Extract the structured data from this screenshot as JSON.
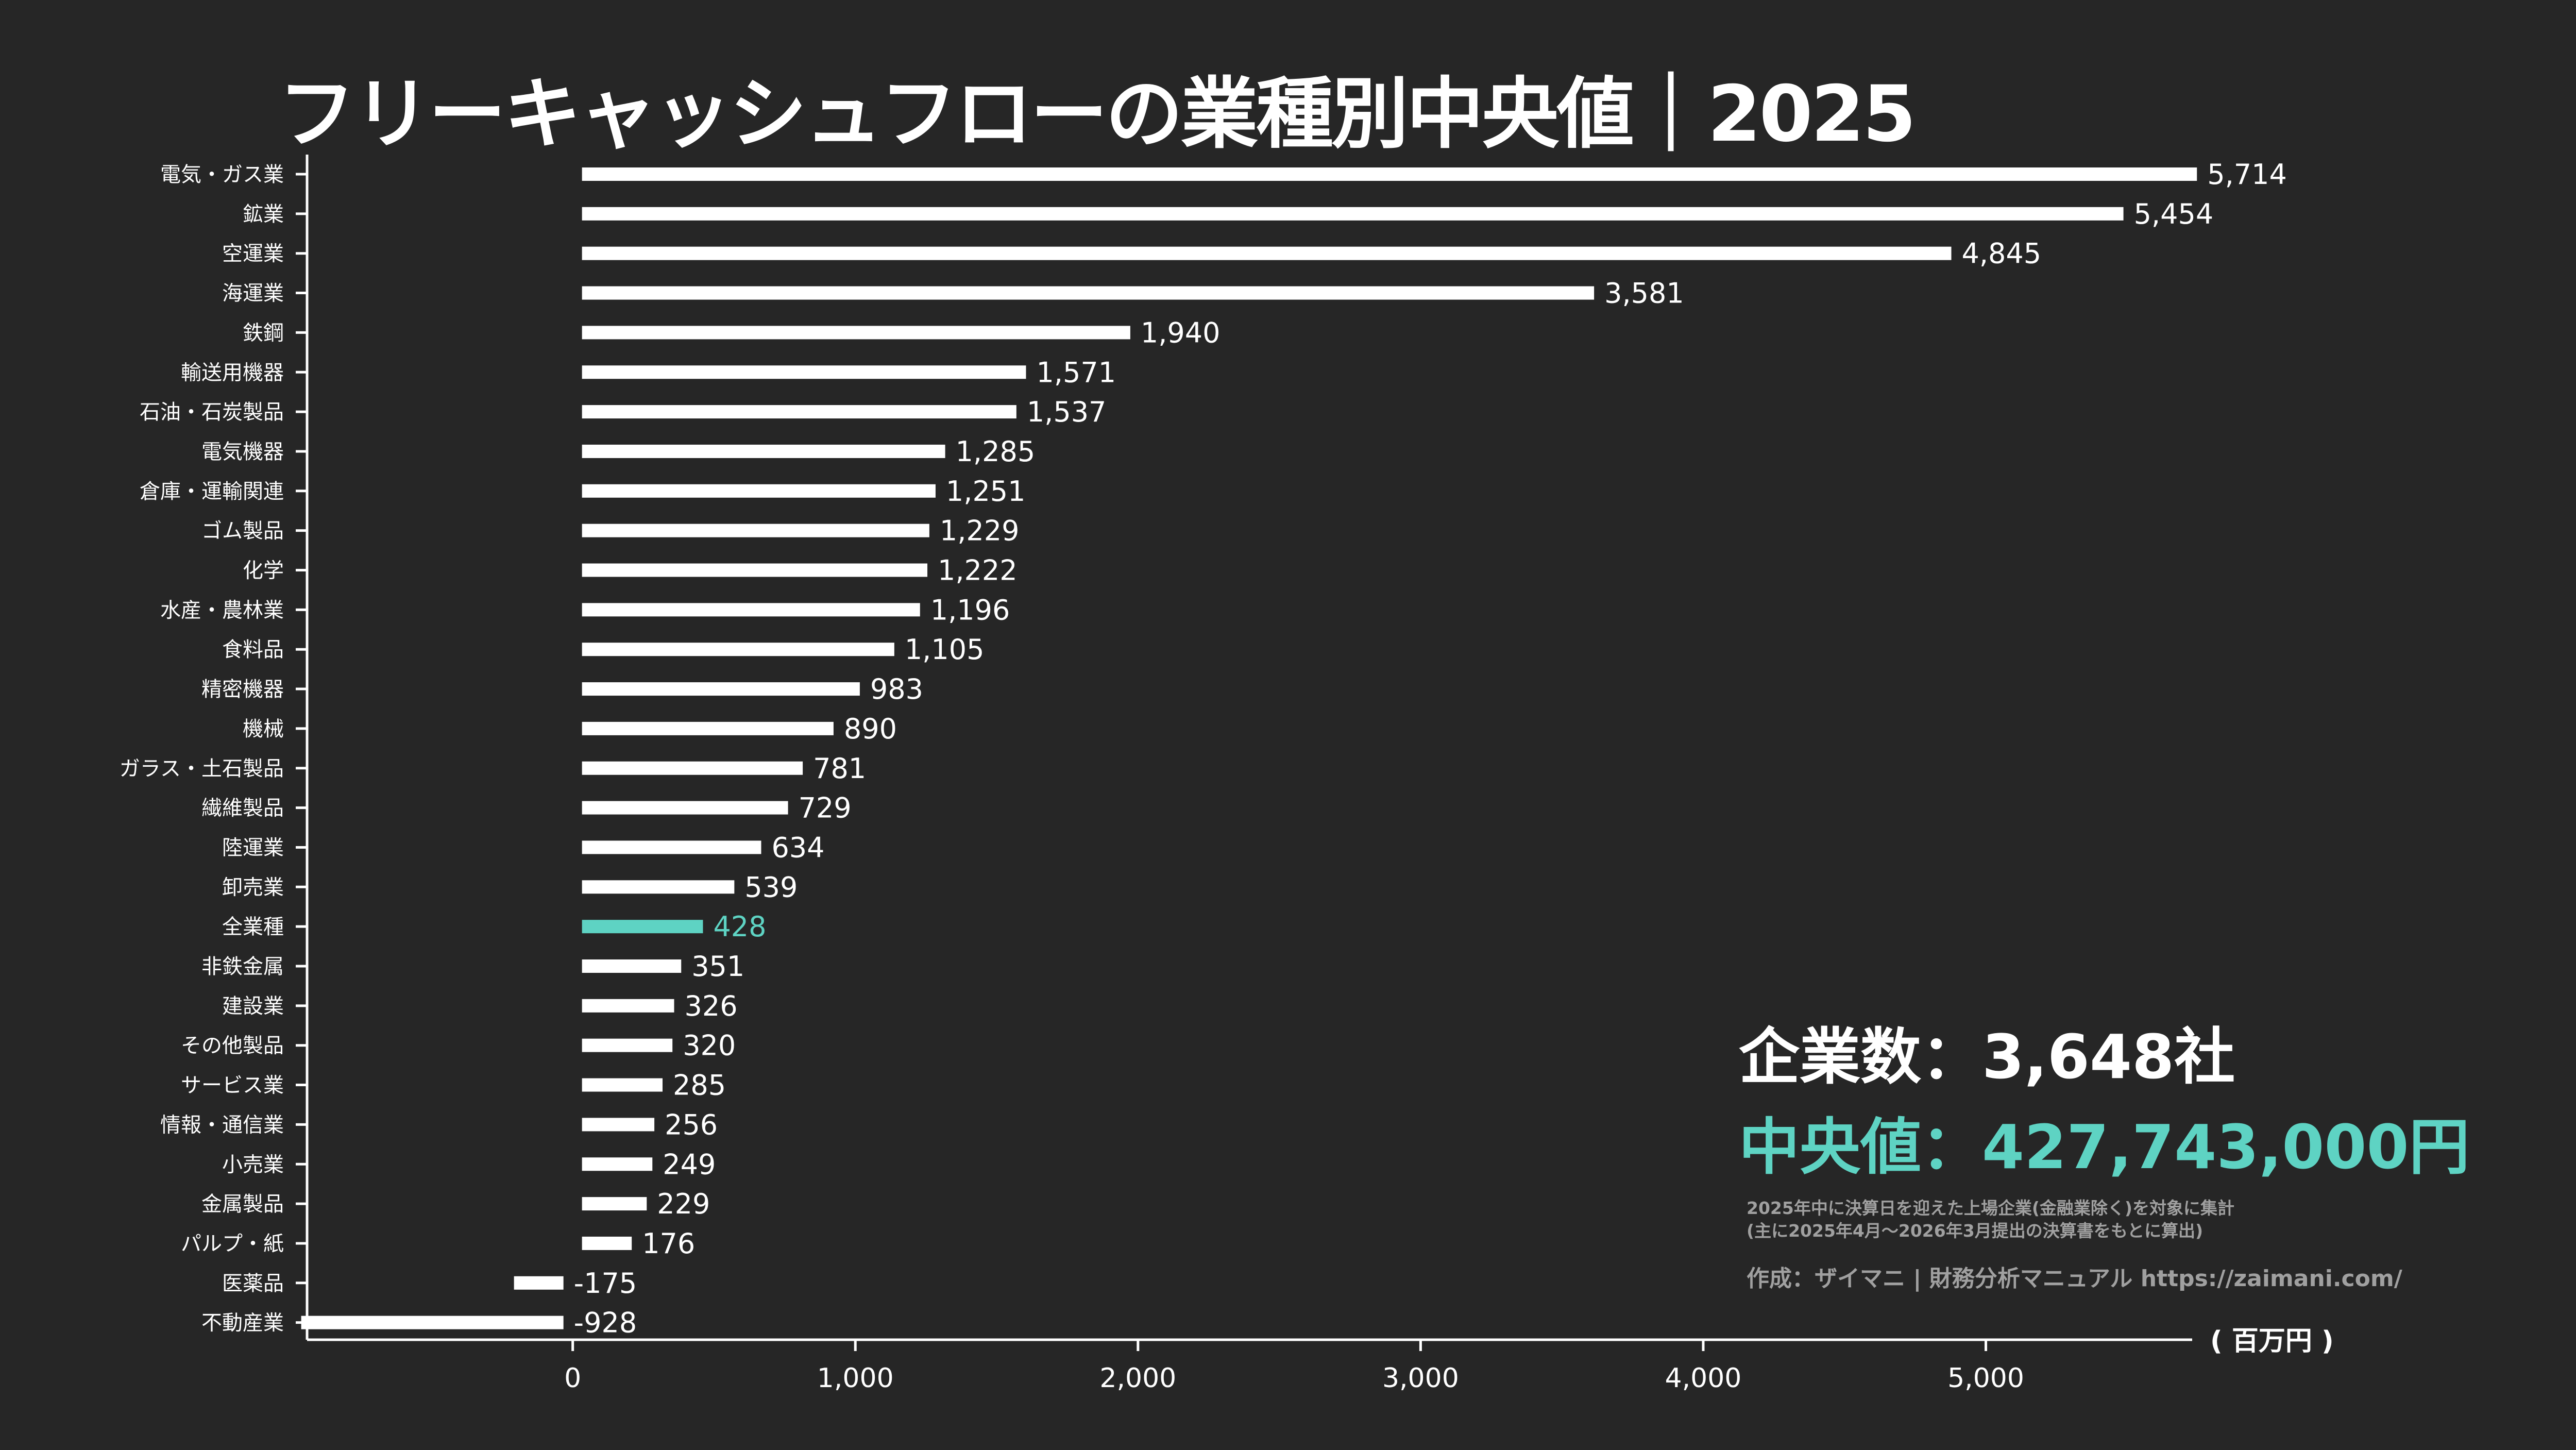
{
  "title": "フリーキャッシュフローの業種別中央値｜2025",
  "stats": {
    "companies": "企業数：3,648社",
    "median": "中央値：427,743,000円"
  },
  "notes": [
    "2025年中に決算日を迎えた上場企業(金融業除く)を対象に集計",
    "(主に2025年4月〜2026年3月提出の決算書をもとに算出)"
  ],
  "credit": "作成：ザイマニ | 財務分析マニュアル https://zaimani.com/",
  "colors": {
    "background": "#262626",
    "bar": "#ffffff",
    "highlight": "#5ed3c3",
    "note": "#a0a0a0"
  },
  "chart_data": {
    "type": "bar",
    "orientation": "horizontal",
    "categories": [
      "電気・ガス業",
      "鉱業",
      "空運業",
      "海運業",
      "鉄鋼",
      "輸送用機器",
      "石油・石炭製品",
      "電気機器",
      "倉庫・運輸関連",
      "ゴム製品",
      "化学",
      "水産・農林業",
      "食料品",
      "精密機器",
      "機械",
      "ガラス・土石製品",
      "繊維製品",
      "陸運業",
      "卸売業",
      "全業種",
      "非鉄金属",
      "建設業",
      "その他製品",
      "サービス業",
      "情報・通信業",
      "小売業",
      "金属製品",
      "パルプ・紙",
      "医薬品",
      "不動産業"
    ],
    "values": [
      5714,
      5454,
      4845,
      3581,
      1940,
      1571,
      1537,
      1285,
      1251,
      1229,
      1222,
      1196,
      1105,
      983,
      890,
      781,
      729,
      634,
      539,
      428,
      351,
      326,
      320,
      285,
      256,
      249,
      229,
      176,
      -175,
      -928
    ],
    "value_labels": [
      "5,714",
      "5,454",
      "4,845",
      "3,581",
      "1,940",
      "1,571",
      "1,537",
      "1,285",
      "1,251",
      "1,229",
      "1,222",
      "1,196",
      "1,105",
      "983",
      "890",
      "781",
      "729",
      "634",
      "539",
      "428",
      "351",
      "326",
      "320",
      "285",
      "256",
      "249",
      "229",
      "176",
      "-175",
      "-928"
    ],
    "highlight": "全業種",
    "xlabel": "( 百万円 )",
    "xticks": [
      0,
      1000,
      2000,
      3000,
      4000,
      5000
    ],
    "xtick_labels": [
      "0",
      "1,000",
      "2,000",
      "3,000",
      "4,000",
      "5,000"
    ],
    "xlim": [
      -940,
      5730
    ],
    "grid": false
  }
}
